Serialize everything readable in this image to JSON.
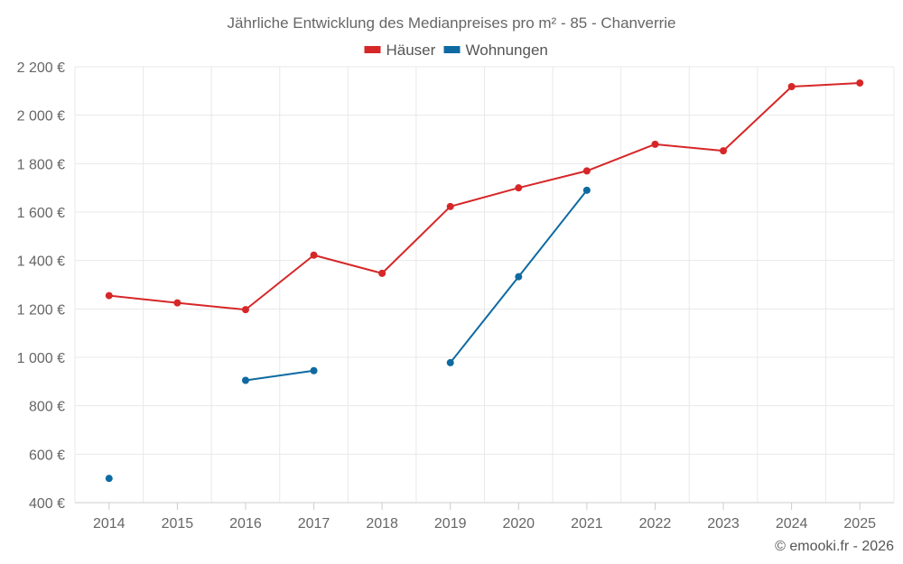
{
  "chart_data": {
    "type": "line",
    "title": "Jährliche Entwicklung des Medianpreises pro m² - 85 - Chanverrie",
    "xlabel": "",
    "ylabel": "",
    "categories": [
      "2014",
      "2015",
      "2016",
      "2017",
      "2018",
      "2019",
      "2020",
      "2021",
      "2022",
      "2023",
      "2024",
      "2025"
    ],
    "ylim": [
      400,
      2200
    ],
    "yticks": [
      400,
      600,
      800,
      1000,
      1200,
      1400,
      1600,
      1800,
      2000,
      2200
    ],
    "ytick_labels": [
      "400 €",
      "600 €",
      "800 €",
      "1 000 €",
      "1 200 €",
      "1 400 €",
      "1 600 €",
      "1 800 €",
      "2 000 €",
      "2 200 €"
    ],
    "grid": true,
    "legend_position": "top-center",
    "series": [
      {
        "name": "Häuser",
        "color": "#d62728",
        "values": [
          1255,
          1225,
          1197,
          1422,
          1347,
          1623,
          1700,
          1770,
          1880,
          1853,
          2118,
          2133
        ]
      },
      {
        "name": "Wohnungen",
        "color": "#0e6aa1",
        "values": [
          500,
          null,
          905,
          945,
          null,
          978,
          1333,
          1690,
          null,
          null,
          null,
          null
        ]
      }
    ]
  },
  "footer": {
    "copyright": "© emooki.fr - 2026"
  }
}
